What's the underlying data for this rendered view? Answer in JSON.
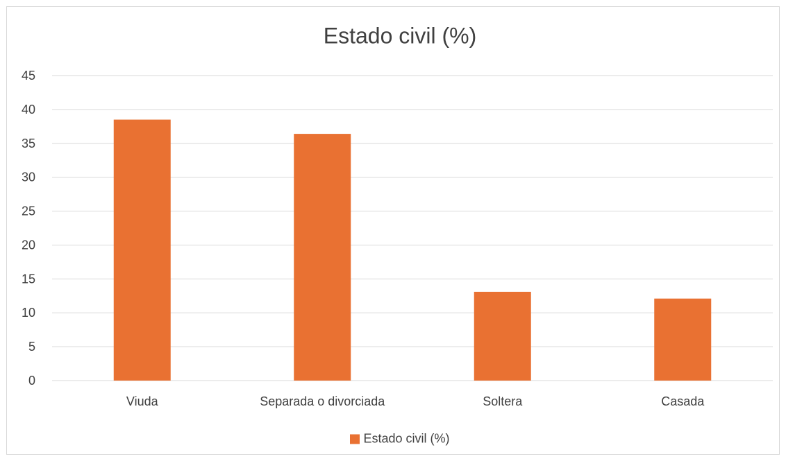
{
  "chart_data": {
    "type": "bar",
    "title": "Estado civil (%)",
    "categories": [
      "Viuda",
      "Separada o divorciada",
      "Soltera",
      "Casada"
    ],
    "series": [
      {
        "name": "Estado civil (%)",
        "values": [
          38.5,
          36.4,
          13.1,
          12.1
        ],
        "color": "#E97132"
      }
    ],
    "ylim": [
      0,
      45
    ],
    "yticks": [
      "0",
      "5",
      "10",
      "15",
      "20",
      "25",
      "30",
      "35",
      "40",
      "45"
    ],
    "xlabel": "",
    "ylabel": "",
    "grid": true,
    "legend_position": "bottom"
  }
}
